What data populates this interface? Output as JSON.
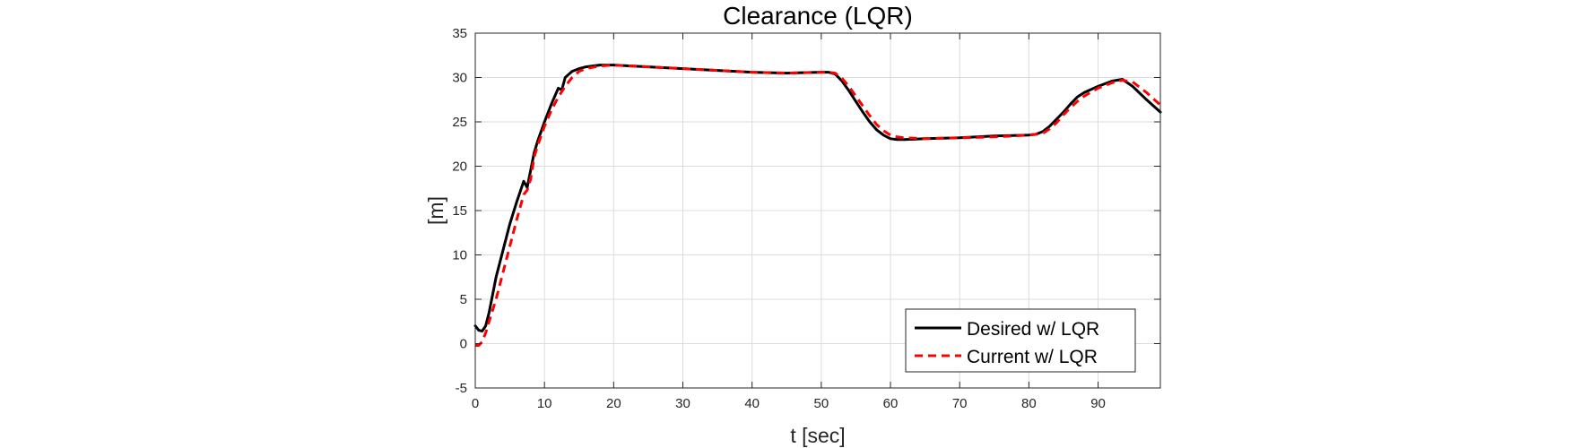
{
  "chart_data": {
    "type": "line",
    "title": "Clearance (LQR)",
    "xlabel": "t [sec]",
    "ylabel": "[m]",
    "xlim": [
      0,
      99
    ],
    "ylim": [
      -5,
      35
    ],
    "xticks": [
      0,
      10,
      20,
      30,
      40,
      50,
      60,
      70,
      80,
      90
    ],
    "yticks": [
      -5,
      0,
      5,
      10,
      15,
      20,
      25,
      30,
      35
    ],
    "grid": true,
    "legend_position": "bottom-right",
    "series": [
      {
        "name": "Desired w/ LQR",
        "color": "#000000",
        "style": "solid",
        "x": [
          0,
          0.5,
          1,
          1.5,
          2,
          3,
          4,
          5,
          6,
          7,
          7.5,
          8,
          8.5,
          9,
          10,
          11,
          12,
          12.5,
          13,
          14,
          15,
          16,
          18,
          20,
          25,
          30,
          35,
          40,
          45,
          50,
          51,
          52,
          53,
          54,
          55,
          56,
          57,
          58,
          59,
          60,
          61,
          62,
          65,
          70,
          75,
          80,
          81,
          82,
          83,
          84,
          85,
          86,
          87,
          88,
          90,
          92,
          93.5,
          95,
          97,
          99
        ],
        "y": [
          2.0,
          1.5,
          1.4,
          2.0,
          3.5,
          7.5,
          10.5,
          13.5,
          16.0,
          18.3,
          17.6,
          19.5,
          21.5,
          22.8,
          25.0,
          27.0,
          28.8,
          28.6,
          30.0,
          30.7,
          31.0,
          31.2,
          31.4,
          31.4,
          31.2,
          31.0,
          30.8,
          30.6,
          30.5,
          30.6,
          30.6,
          30.4,
          29.6,
          28.5,
          27.3,
          26.1,
          25.0,
          24.1,
          23.5,
          23.1,
          23.0,
          23.0,
          23.1,
          23.2,
          23.4,
          23.5,
          23.6,
          23.9,
          24.5,
          25.3,
          26.1,
          27.0,
          27.8,
          28.3,
          29.0,
          29.6,
          29.8,
          29.0,
          27.5,
          26.1
        ]
      },
      {
        "name": "Current w/ LQR",
        "color": "#ff0000",
        "style": "dashed",
        "x": [
          0,
          0.5,
          1,
          1.5,
          2,
          3,
          4,
          5,
          6,
          7,
          7.5,
          8,
          8.5,
          9,
          10,
          11,
          12,
          13,
          14,
          15,
          16,
          18,
          20,
          25,
          30,
          35,
          40,
          45,
          50,
          51,
          52,
          53,
          54,
          55,
          56,
          57,
          58,
          59,
          60,
          61,
          62,
          65,
          70,
          75,
          80,
          81,
          82,
          83,
          84,
          85,
          86,
          87,
          88,
          90,
          92,
          93.5,
          95,
          97,
          99
        ],
        "y": [
          -0.2,
          -0.2,
          0.2,
          1.2,
          2.5,
          5.0,
          8.0,
          11.0,
          14.0,
          16.8,
          17.3,
          18.5,
          21.0,
          22.3,
          24.5,
          26.3,
          27.8,
          29.0,
          30.0,
          30.7,
          31.0,
          31.3,
          31.4,
          31.2,
          31.0,
          30.8,
          30.6,
          30.5,
          30.6,
          30.6,
          30.5,
          29.9,
          29.0,
          27.9,
          26.8,
          25.7,
          24.7,
          24.0,
          23.5,
          23.3,
          23.2,
          23.1,
          23.2,
          23.3,
          23.5,
          23.6,
          23.7,
          24.2,
          24.9,
          25.8,
          26.6,
          27.3,
          27.9,
          28.8,
          29.4,
          29.7,
          29.5,
          28.3,
          26.9
        ]
      }
    ]
  }
}
